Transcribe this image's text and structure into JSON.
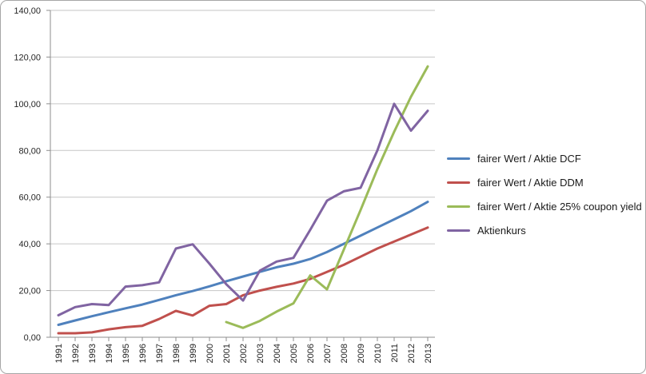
{
  "chart_data": {
    "type": "line",
    "title": "",
    "xlabel": "",
    "ylabel": "",
    "x_categories": [
      "1991",
      "1992",
      "1993",
      "1994",
      "1995",
      "1996",
      "1997",
      "1998",
      "1999",
      "2000",
      "2001",
      "2002",
      "2003",
      "2004",
      "2005",
      "2006",
      "2007",
      "2008",
      "2009",
      "2010",
      "2011",
      "2012",
      "2013"
    ],
    "y_tick_labels": [
      "0,00",
      "20,00",
      "40,00",
      "60,00",
      "80,00",
      "100,00",
      "120,00",
      "140,00"
    ],
    "y_tick_step": 20,
    "ylim": [
      0,
      140
    ],
    "grid": true,
    "legend_position": "right",
    "series": [
      {
        "name": "fairer Wert / Aktie DCF",
        "color": "#4F81BD",
        "values": [
          5.3,
          7.2,
          9,
          10.7,
          12.4,
          14,
          16,
          18,
          19.8,
          21.8,
          24,
          26,
          28,
          30,
          31.5,
          33.5,
          36.5,
          40,
          43.5,
          47,
          50.5,
          54,
          58
        ]
      },
      {
        "name": "fairer Wert / Aktie DDM",
        "color": "#C0504D",
        "values": [
          1.7,
          1.7,
          2.1,
          3.4,
          4.3,
          4.9,
          7.8,
          11.3,
          9.3,
          13.5,
          14.2,
          18,
          20,
          21.6,
          23,
          25,
          28,
          31,
          34.5,
          38,
          41,
          44,
          47
        ]
      },
      {
        "name": "fairer Wert / Aktie 25% coupon yield",
        "color": "#9BBB59",
        "values": [
          null,
          null,
          null,
          null,
          null,
          null,
          null,
          null,
          null,
          null,
          6.5,
          4,
          7,
          11,
          14.5,
          26.5,
          20.5,
          37.5,
          54.5,
          72,
          88,
          103,
          116
        ]
      },
      {
        "name": "Aktienkurs",
        "color": "#8064A2",
        "values": [
          9.4,
          12.9,
          14.2,
          13.8,
          21.7,
          22.3,
          23.5,
          38,
          39.8,
          31.5,
          22.7,
          15.7,
          28.5,
          32.4,
          34,
          46,
          58.5,
          62.5,
          64,
          80,
          100,
          88.5,
          97
        ]
      }
    ]
  }
}
